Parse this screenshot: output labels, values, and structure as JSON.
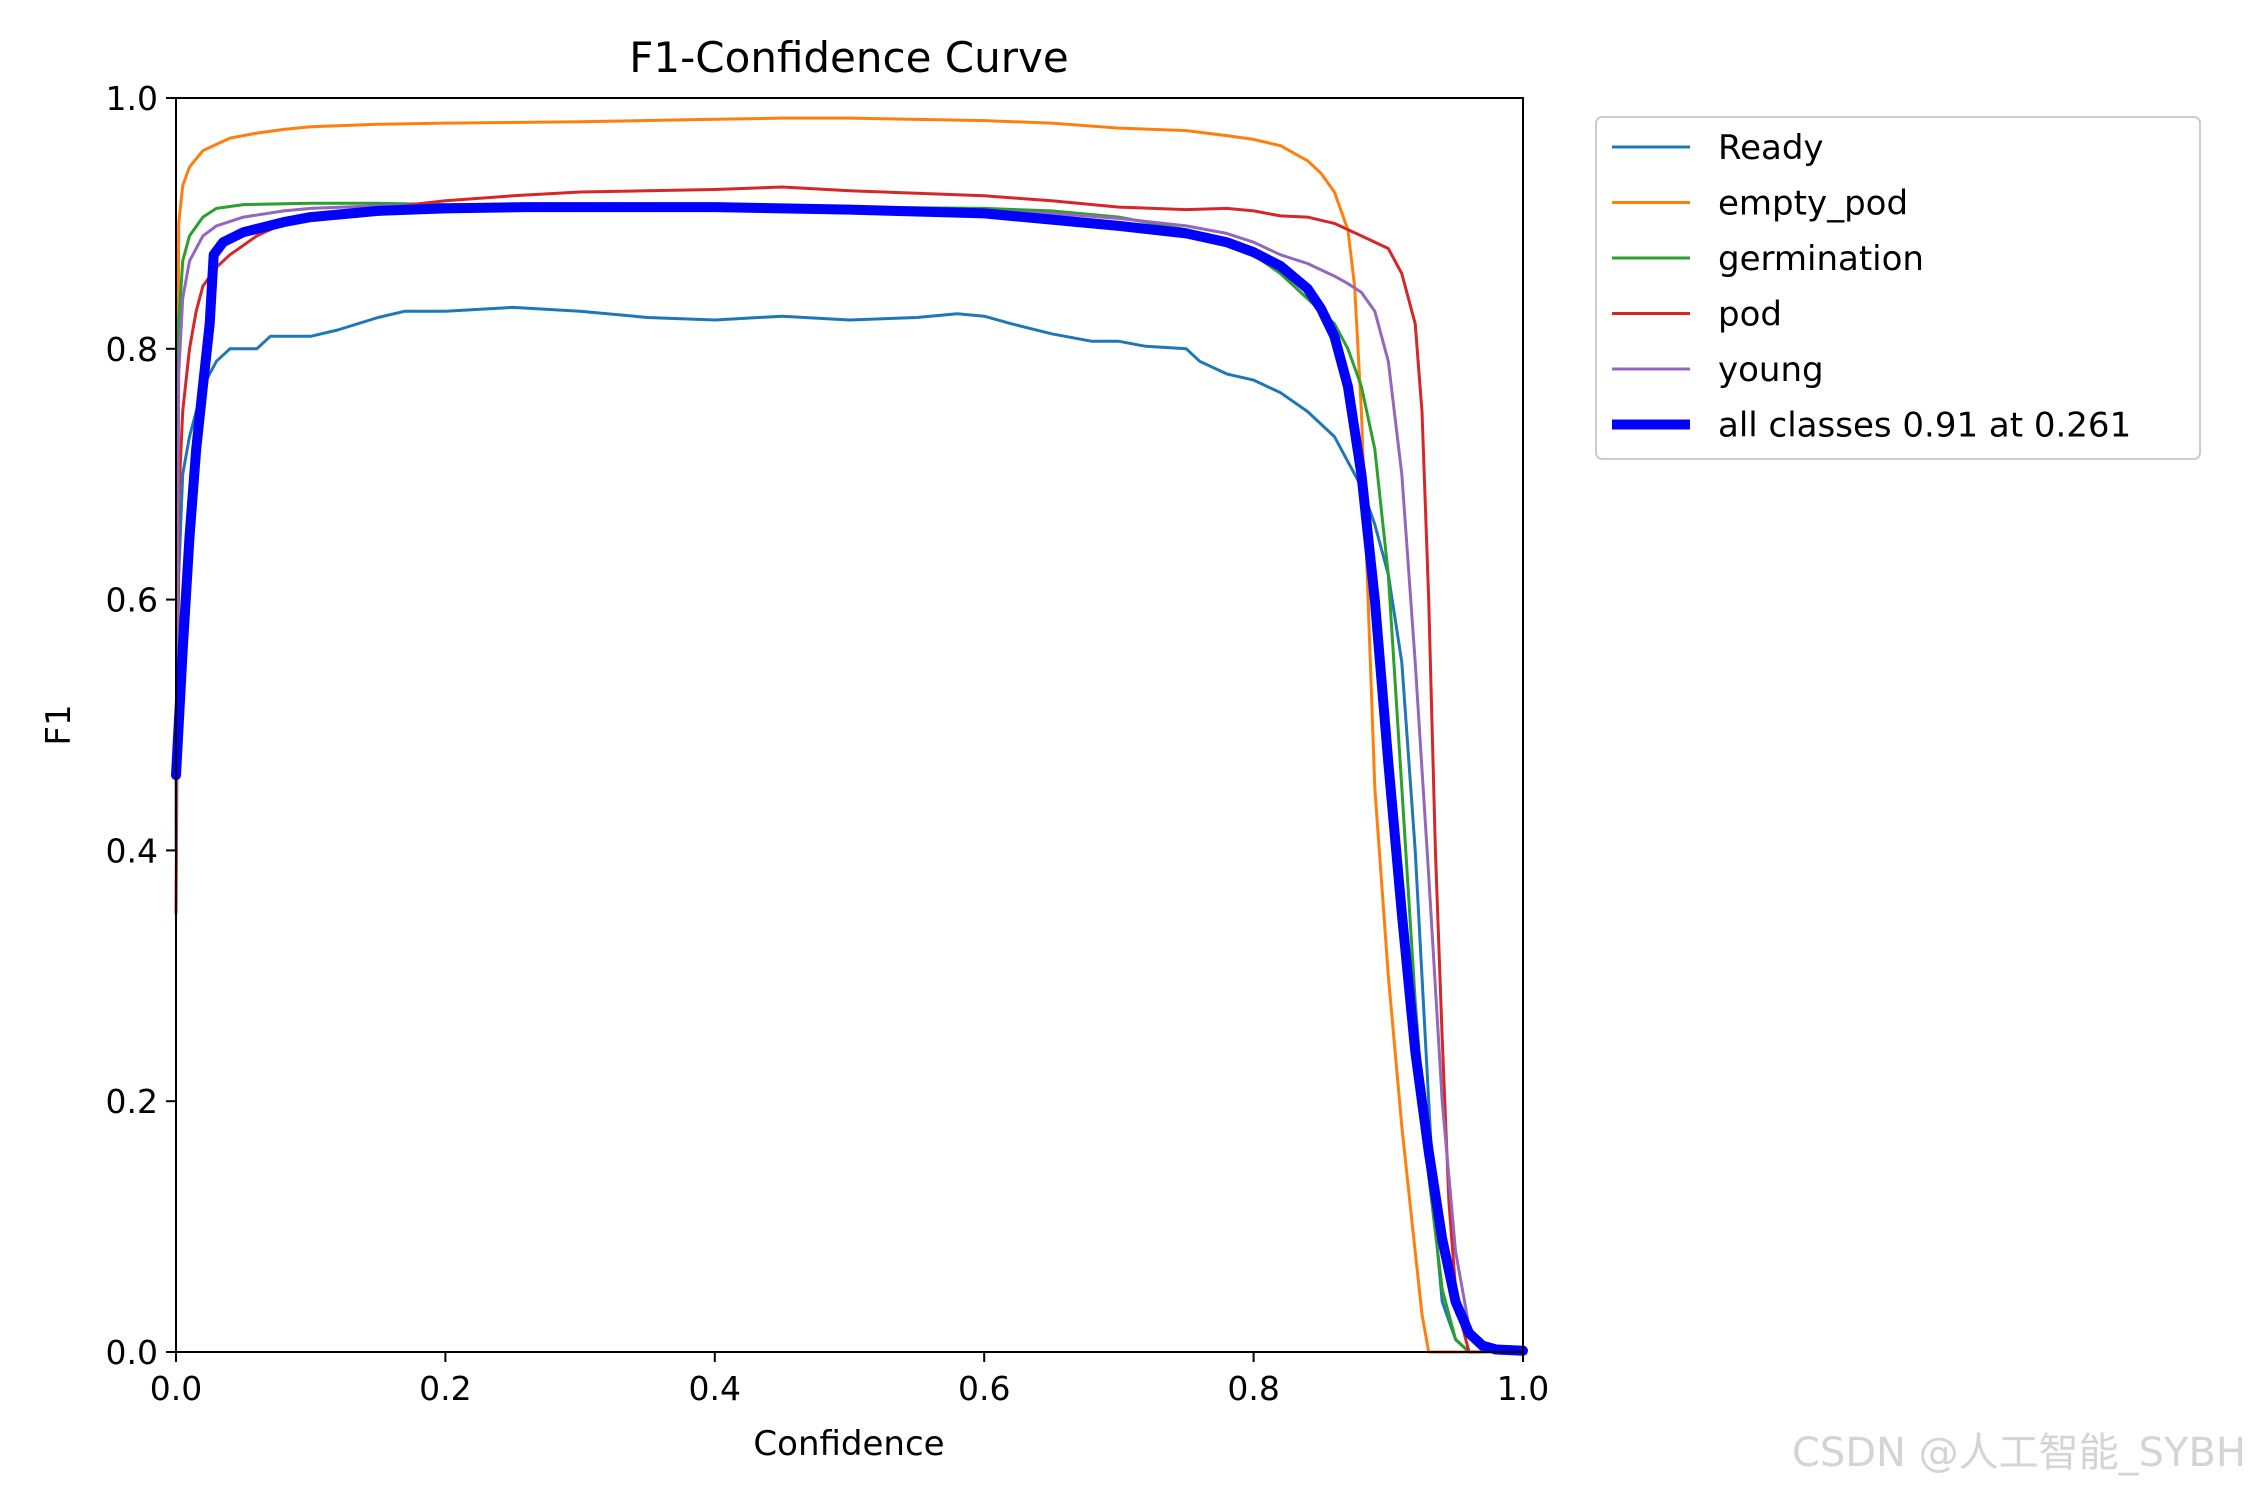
{
  "chart_data": {
    "type": "line",
    "title": "F1-Confidence Curve",
    "xlabel": "Confidence",
    "ylabel": "F1",
    "xlim": [
      0,
      1
    ],
    "ylim": [
      0,
      1
    ],
    "xticks": [
      "0.0",
      "0.2",
      "0.4",
      "0.6",
      "0.8",
      "1.0"
    ],
    "yticks": [
      "0.0",
      "0.2",
      "0.4",
      "0.6",
      "0.8",
      "1.0"
    ],
    "legend_position": "outside-top-right",
    "grid": false,
    "series": [
      {
        "name": "Ready",
        "color": "#1f77b4",
        "width": "thin",
        "points": [
          [
            0.0,
            0.45
          ],
          [
            0.002,
            0.62
          ],
          [
            0.005,
            0.7
          ],
          [
            0.01,
            0.73
          ],
          [
            0.015,
            0.75
          ],
          [
            0.02,
            0.77
          ],
          [
            0.03,
            0.79
          ],
          [
            0.04,
            0.8
          ],
          [
            0.06,
            0.8
          ],
          [
            0.07,
            0.81
          ],
          [
            0.1,
            0.81
          ],
          [
            0.12,
            0.815
          ],
          [
            0.15,
            0.825
          ],
          [
            0.17,
            0.83
          ],
          [
            0.2,
            0.83
          ],
          [
            0.25,
            0.833
          ],
          [
            0.3,
            0.83
          ],
          [
            0.35,
            0.825
          ],
          [
            0.4,
            0.823
          ],
          [
            0.45,
            0.826
          ],
          [
            0.5,
            0.823
          ],
          [
            0.55,
            0.825
          ],
          [
            0.58,
            0.828
          ],
          [
            0.6,
            0.826
          ],
          [
            0.62,
            0.82
          ],
          [
            0.65,
            0.812
          ],
          [
            0.68,
            0.806
          ],
          [
            0.7,
            0.806
          ],
          [
            0.72,
            0.802
          ],
          [
            0.75,
            0.8
          ],
          [
            0.76,
            0.79
          ],
          [
            0.78,
            0.78
          ],
          [
            0.8,
            0.775
          ],
          [
            0.82,
            0.765
          ],
          [
            0.84,
            0.75
          ],
          [
            0.86,
            0.73
          ],
          [
            0.87,
            0.71
          ],
          [
            0.88,
            0.69
          ],
          [
            0.89,
            0.66
          ],
          [
            0.9,
            0.62
          ],
          [
            0.91,
            0.55
          ],
          [
            0.92,
            0.4
          ],
          [
            0.93,
            0.2
          ],
          [
            0.935,
            0.1
          ],
          [
            0.94,
            0.04
          ],
          [
            0.95,
            0.01
          ],
          [
            0.96,
            0.0
          ],
          [
            1.0,
            0.0
          ]
        ]
      },
      {
        "name": "empty_pod",
        "color": "#ff7f0e",
        "width": "thin",
        "points": [
          [
            0.0,
            0.4
          ],
          [
            0.002,
            0.9
          ],
          [
            0.005,
            0.93
          ],
          [
            0.01,
            0.945
          ],
          [
            0.02,
            0.958
          ],
          [
            0.03,
            0.963
          ],
          [
            0.04,
            0.968
          ],
          [
            0.06,
            0.972
          ],
          [
            0.08,
            0.975
          ],
          [
            0.1,
            0.977
          ],
          [
            0.15,
            0.979
          ],
          [
            0.2,
            0.98
          ],
          [
            0.3,
            0.981
          ],
          [
            0.4,
            0.983
          ],
          [
            0.45,
            0.984
          ],
          [
            0.5,
            0.984
          ],
          [
            0.6,
            0.982
          ],
          [
            0.65,
            0.98
          ],
          [
            0.7,
            0.976
          ],
          [
            0.75,
            0.974
          ],
          [
            0.78,
            0.97
          ],
          [
            0.8,
            0.967
          ],
          [
            0.82,
            0.962
          ],
          [
            0.84,
            0.95
          ],
          [
            0.85,
            0.94
          ],
          [
            0.86,
            0.925
          ],
          [
            0.87,
            0.895
          ],
          [
            0.875,
            0.85
          ],
          [
            0.88,
            0.75
          ],
          [
            0.885,
            0.6
          ],
          [
            0.89,
            0.45
          ],
          [
            0.9,
            0.3
          ],
          [
            0.91,
            0.18
          ],
          [
            0.92,
            0.08
          ],
          [
            0.925,
            0.03
          ],
          [
            0.93,
            0.0
          ],
          [
            1.0,
            0.0
          ]
        ]
      },
      {
        "name": "germination",
        "color": "#2ca02c",
        "width": "thin",
        "points": [
          [
            0.0,
            0.42
          ],
          [
            0.002,
            0.82
          ],
          [
            0.005,
            0.87
          ],
          [
            0.01,
            0.89
          ],
          [
            0.02,
            0.905
          ],
          [
            0.03,
            0.912
          ],
          [
            0.05,
            0.915
          ],
          [
            0.1,
            0.916
          ],
          [
            0.15,
            0.916
          ],
          [
            0.2,
            0.915
          ],
          [
            0.3,
            0.915
          ],
          [
            0.4,
            0.914
          ],
          [
            0.5,
            0.913
          ],
          [
            0.6,
            0.912
          ],
          [
            0.65,
            0.91
          ],
          [
            0.7,
            0.905
          ],
          [
            0.75,
            0.895
          ],
          [
            0.78,
            0.885
          ],
          [
            0.8,
            0.875
          ],
          [
            0.82,
            0.86
          ],
          [
            0.84,
            0.84
          ],
          [
            0.86,
            0.82
          ],
          [
            0.87,
            0.8
          ],
          [
            0.88,
            0.77
          ],
          [
            0.89,
            0.72
          ],
          [
            0.9,
            0.62
          ],
          [
            0.91,
            0.45
          ],
          [
            0.92,
            0.28
          ],
          [
            0.93,
            0.14
          ],
          [
            0.94,
            0.05
          ],
          [
            0.95,
            0.01
          ],
          [
            0.96,
            0.0
          ],
          [
            1.0,
            0.0
          ]
        ]
      },
      {
        "name": "pod",
        "color": "#d62728",
        "width": "thin",
        "points": [
          [
            0.0,
            0.35
          ],
          [
            0.002,
            0.68
          ],
          [
            0.005,
            0.75
          ],
          [
            0.01,
            0.8
          ],
          [
            0.015,
            0.83
          ],
          [
            0.02,
            0.85
          ],
          [
            0.03,
            0.865
          ],
          [
            0.04,
            0.875
          ],
          [
            0.06,
            0.89
          ],
          [
            0.08,
            0.9
          ],
          [
            0.1,
            0.905
          ],
          [
            0.15,
            0.912
          ],
          [
            0.2,
            0.918
          ],
          [
            0.25,
            0.922
          ],
          [
            0.3,
            0.925
          ],
          [
            0.35,
            0.926
          ],
          [
            0.4,
            0.927
          ],
          [
            0.45,
            0.929
          ],
          [
            0.5,
            0.926
          ],
          [
            0.55,
            0.924
          ],
          [
            0.6,
            0.922
          ],
          [
            0.65,
            0.918
          ],
          [
            0.7,
            0.913
          ],
          [
            0.75,
            0.911
          ],
          [
            0.78,
            0.912
          ],
          [
            0.8,
            0.91
          ],
          [
            0.82,
            0.906
          ],
          [
            0.84,
            0.905
          ],
          [
            0.86,
            0.9
          ],
          [
            0.88,
            0.89
          ],
          [
            0.9,
            0.88
          ],
          [
            0.91,
            0.86
          ],
          [
            0.92,
            0.82
          ],
          [
            0.925,
            0.75
          ],
          [
            0.93,
            0.6
          ],
          [
            0.935,
            0.4
          ],
          [
            0.94,
            0.25
          ],
          [
            0.945,
            0.12
          ],
          [
            0.95,
            0.05
          ],
          [
            0.955,
            0.02
          ],
          [
            0.96,
            0.0
          ],
          [
            1.0,
            0.0
          ]
        ]
      },
      {
        "name": "young",
        "color": "#9467bd",
        "width": "thin",
        "points": [
          [
            0.0,
            0.4
          ],
          [
            0.002,
            0.78
          ],
          [
            0.005,
            0.84
          ],
          [
            0.01,
            0.87
          ],
          [
            0.02,
            0.89
          ],
          [
            0.03,
            0.898
          ],
          [
            0.05,
            0.905
          ],
          [
            0.08,
            0.91
          ],
          [
            0.1,
            0.912
          ],
          [
            0.15,
            0.914
          ],
          [
            0.2,
            0.914
          ],
          [
            0.3,
            0.914
          ],
          [
            0.4,
            0.913
          ],
          [
            0.5,
            0.912
          ],
          [
            0.6,
            0.91
          ],
          [
            0.65,
            0.908
          ],
          [
            0.7,
            0.904
          ],
          [
            0.75,
            0.898
          ],
          [
            0.78,
            0.892
          ],
          [
            0.8,
            0.885
          ],
          [
            0.82,
            0.875
          ],
          [
            0.84,
            0.868
          ],
          [
            0.86,
            0.858
          ],
          [
            0.87,
            0.852
          ],
          [
            0.88,
            0.845
          ],
          [
            0.89,
            0.83
          ],
          [
            0.9,
            0.79
          ],
          [
            0.91,
            0.7
          ],
          [
            0.92,
            0.55
          ],
          [
            0.93,
            0.38
          ],
          [
            0.94,
            0.2
          ],
          [
            0.95,
            0.08
          ],
          [
            0.96,
            0.02
          ],
          [
            0.97,
            0.0
          ],
          [
            1.0,
            0.0
          ]
        ]
      },
      {
        "name": "all classes 0.91 at 0.261",
        "color": "#0000ff",
        "width": "thick",
        "points": [
          [
            0.0,
            0.46
          ],
          [
            0.005,
            0.56
          ],
          [
            0.01,
            0.65
          ],
          [
            0.015,
            0.72
          ],
          [
            0.02,
            0.77
          ],
          [
            0.025,
            0.82
          ],
          [
            0.028,
            0.875
          ],
          [
            0.035,
            0.885
          ],
          [
            0.05,
            0.893
          ],
          [
            0.08,
            0.901
          ],
          [
            0.1,
            0.905
          ],
          [
            0.15,
            0.91
          ],
          [
            0.2,
            0.912
          ],
          [
            0.26,
            0.913
          ],
          [
            0.3,
            0.913
          ],
          [
            0.4,
            0.913
          ],
          [
            0.45,
            0.912
          ],
          [
            0.5,
            0.911
          ],
          [
            0.6,
            0.908
          ],
          [
            0.65,
            0.903
          ],
          [
            0.7,
            0.898
          ],
          [
            0.75,
            0.892
          ],
          [
            0.78,
            0.885
          ],
          [
            0.8,
            0.877
          ],
          [
            0.82,
            0.866
          ],
          [
            0.84,
            0.848
          ],
          [
            0.85,
            0.832
          ],
          [
            0.86,
            0.81
          ],
          [
            0.87,
            0.77
          ],
          [
            0.88,
            0.7
          ],
          [
            0.89,
            0.6
          ],
          [
            0.9,
            0.47
          ],
          [
            0.91,
            0.35
          ],
          [
            0.92,
            0.24
          ],
          [
            0.93,
            0.16
          ],
          [
            0.94,
            0.09
          ],
          [
            0.95,
            0.04
          ],
          [
            0.96,
            0.015
          ],
          [
            0.97,
            0.005
          ],
          [
            0.98,
            0.002
          ],
          [
            1.0,
            0.001
          ]
        ]
      }
    ]
  },
  "watermark": "CSDN @人工智能_SYBH"
}
